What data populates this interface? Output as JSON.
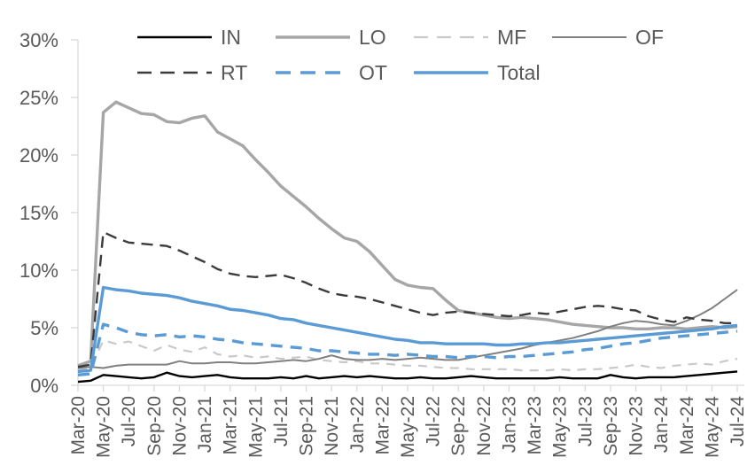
{
  "chart_data": {
    "type": "line",
    "title": "",
    "xlabel": "",
    "ylabel": "",
    "grid": false,
    "legend_position": "top",
    "ylim": [
      0,
      30
    ],
    "ytick_step": 5,
    "ytick_labels": [
      "0%",
      "5%",
      "10%",
      "15%",
      "20%",
      "25%",
      "30%"
    ],
    "x_label_every_n_months": 2,
    "x_tick_labels": [
      "Mar-20",
      "May-20",
      "Jul-20",
      "Sep-20",
      "Nov-20",
      "Jan-21",
      "Mar-21",
      "May-21",
      "Jul-21",
      "Sep-21",
      "Nov-21",
      "Jan-22",
      "Mar-22",
      "May-22",
      "Jul-22",
      "Sep-22",
      "Nov-22",
      "Jan-23",
      "Mar-23",
      "May-23",
      "Jul-23",
      "Sep-23",
      "Nov-23",
      "Jan-24",
      "Mar-24",
      "May-24",
      "Jul-24"
    ],
    "x": [
      "Mar-20",
      "Apr-20",
      "May-20",
      "Jun-20",
      "Jul-20",
      "Aug-20",
      "Sep-20",
      "Oct-20",
      "Nov-20",
      "Dec-20",
      "Jan-21",
      "Feb-21",
      "Mar-21",
      "Apr-21",
      "May-21",
      "Jun-21",
      "Jul-21",
      "Aug-21",
      "Sep-21",
      "Oct-21",
      "Nov-21",
      "Dec-21",
      "Jan-22",
      "Feb-22",
      "Mar-22",
      "Apr-22",
      "May-22",
      "Jun-22",
      "Jul-22",
      "Aug-22",
      "Sep-22",
      "Oct-22",
      "Nov-22",
      "Dec-22",
      "Jan-23",
      "Feb-23",
      "Mar-23",
      "Apr-23",
      "May-23",
      "Jun-23",
      "Jul-23",
      "Aug-23",
      "Sep-23",
      "Oct-23",
      "Nov-23",
      "Dec-23",
      "Jan-24",
      "Feb-24",
      "Mar-24",
      "Apr-24",
      "May-24",
      "Jun-24",
      "Jul-24"
    ],
    "unit": "%",
    "series": [
      {
        "name": "IN",
        "color": "#000000",
        "dashed": false,
        "width": 2.4,
        "values": [
          0.3,
          0.4,
          0.9,
          0.8,
          0.7,
          0.6,
          0.7,
          1.1,
          0.8,
          0.7,
          0.8,
          0.9,
          0.7,
          0.6,
          0.6,
          0.6,
          0.7,
          0.6,
          0.8,
          0.6,
          0.7,
          0.8,
          0.7,
          0.8,
          0.7,
          0.6,
          0.6,
          0.7,
          0.6,
          0.6,
          0.7,
          0.8,
          0.7,
          0.6,
          0.6,
          0.6,
          0.6,
          0.6,
          0.7,
          0.6,
          0.6,
          0.6,
          0.9,
          0.7,
          0.6,
          0.7,
          0.7,
          0.7,
          0.8,
          0.9,
          1.0,
          1.1,
          1.2
        ]
      },
      {
        "name": "LO",
        "color": "#a6a6a6",
        "dashed": false,
        "width": 3.4,
        "values": [
          1.7,
          2.1,
          23.7,
          24.6,
          24.1,
          23.6,
          23.5,
          22.9,
          22.8,
          23.2,
          23.4,
          22.0,
          21.4,
          20.8,
          19.6,
          18.5,
          17.3,
          16.4,
          15.5,
          14.5,
          13.6,
          12.8,
          12.5,
          11.6,
          10.4,
          9.2,
          8.7,
          8.5,
          8.4,
          7.4,
          6.5,
          6.3,
          6.1,
          5.9,
          5.8,
          5.9,
          5.8,
          5.7,
          5.5,
          5.3,
          5.2,
          5.1,
          5.0,
          5.0,
          4.9,
          4.9,
          5.0,
          5.0,
          4.9,
          5.0,
          5.1,
          5.0,
          5.1
        ]
      },
      {
        "name": "MF",
        "color": "#c9c9c9",
        "dashed": true,
        "width": 2.2,
        "values": [
          1.4,
          1.5,
          3.9,
          3.6,
          3.8,
          3.4,
          3.0,
          3.5,
          3.1,
          2.9,
          3.3,
          2.7,
          2.5,
          2.6,
          2.4,
          2.5,
          2.3,
          2.4,
          2.5,
          2.2,
          2.1,
          2.0,
          2.1,
          1.9,
          1.9,
          1.8,
          1.7,
          1.7,
          1.6,
          1.5,
          1.5,
          1.4,
          1.4,
          1.4,
          1.4,
          1.3,
          1.3,
          1.3,
          1.4,
          1.3,
          1.4,
          1.4,
          1.5,
          1.6,
          1.8,
          1.6,
          1.5,
          1.7,
          1.8,
          1.9,
          1.8,
          2.1,
          2.3
        ]
      },
      {
        "name": "OF",
        "color": "#808080",
        "dashed": false,
        "width": 2.0,
        "values": [
          1.5,
          1.6,
          1.5,
          1.7,
          1.8,
          1.8,
          1.8,
          1.8,
          2.1,
          1.9,
          1.9,
          2.0,
          2.0,
          1.9,
          1.9,
          2.0,
          2.1,
          2.2,
          2.1,
          2.3,
          2.6,
          2.3,
          2.2,
          2.2,
          2.3,
          2.2,
          2.3,
          2.4,
          2.3,
          2.2,
          2.2,
          2.4,
          2.6,
          2.8,
          3.0,
          3.2,
          3.5,
          3.7,
          3.9,
          4.1,
          4.4,
          4.7,
          5.1,
          5.4,
          5.6,
          5.5,
          5.3,
          5.2,
          5.6,
          6.1,
          6.7,
          7.5,
          8.3
        ]
      },
      {
        "name": "RT",
        "color": "#3b3b3b",
        "dashed": true,
        "width": 2.4,
        "values": [
          1.6,
          1.8,
          13.3,
          12.8,
          12.4,
          12.3,
          12.2,
          12.1,
          11.7,
          11.2,
          10.7,
          10.1,
          9.7,
          9.5,
          9.4,
          9.5,
          9.6,
          9.3,
          8.9,
          8.4,
          8.0,
          7.8,
          7.7,
          7.5,
          7.2,
          6.9,
          6.6,
          6.3,
          6.1,
          6.3,
          6.4,
          6.3,
          6.2,
          6.1,
          6.0,
          6.1,
          6.3,
          6.2,
          6.4,
          6.6,
          6.8,
          6.9,
          6.8,
          6.6,
          6.5,
          6.0,
          5.7,
          5.5,
          5.9,
          5.7,
          5.6,
          5.4,
          5.4
        ]
      },
      {
        "name": "OT",
        "color": "#5b9bd5",
        "dashed": true,
        "width": 3.4,
        "values": [
          0.9,
          1.0,
          5.3,
          5.0,
          4.6,
          4.4,
          4.3,
          4.4,
          4.2,
          4.3,
          4.2,
          4.0,
          3.9,
          3.7,
          3.6,
          3.5,
          3.4,
          3.3,
          3.2,
          3.0,
          3.0,
          2.9,
          2.8,
          2.7,
          2.7,
          2.6,
          2.7,
          2.6,
          2.5,
          2.5,
          2.4,
          2.5,
          2.5,
          2.4,
          2.5,
          2.5,
          2.6,
          2.7,
          2.8,
          2.9,
          3.1,
          3.2,
          3.4,
          3.6,
          3.7,
          3.9,
          4.1,
          4.2,
          4.3,
          4.4,
          4.5,
          4.6,
          4.7
        ]
      },
      {
        "name": "Total",
        "color": "#5b9bd5",
        "dashed": false,
        "width": 3.4,
        "values": [
          1.2,
          1.3,
          8.5,
          8.3,
          8.2,
          8.0,
          7.9,
          7.8,
          7.6,
          7.3,
          7.1,
          6.9,
          6.6,
          6.5,
          6.3,
          6.1,
          5.8,
          5.7,
          5.4,
          5.2,
          5.0,
          4.8,
          4.6,
          4.4,
          4.2,
          4.0,
          3.9,
          3.7,
          3.7,
          3.6,
          3.6,
          3.6,
          3.6,
          3.5,
          3.5,
          3.6,
          3.6,
          3.7,
          3.7,
          3.8,
          3.9,
          4.0,
          4.1,
          4.2,
          4.3,
          4.4,
          4.5,
          4.6,
          4.7,
          4.8,
          4.9,
          5.1,
          5.2
        ]
      }
    ],
    "legend_rows": [
      [
        "IN",
        "LO",
        "MF",
        "OF"
      ],
      [
        "RT",
        "OT",
        "Total"
      ]
    ],
    "colors": {
      "accent_blue": "#5b9bd5",
      "axis_line": "#d9d9d9",
      "tick_text": "#595959"
    }
  }
}
